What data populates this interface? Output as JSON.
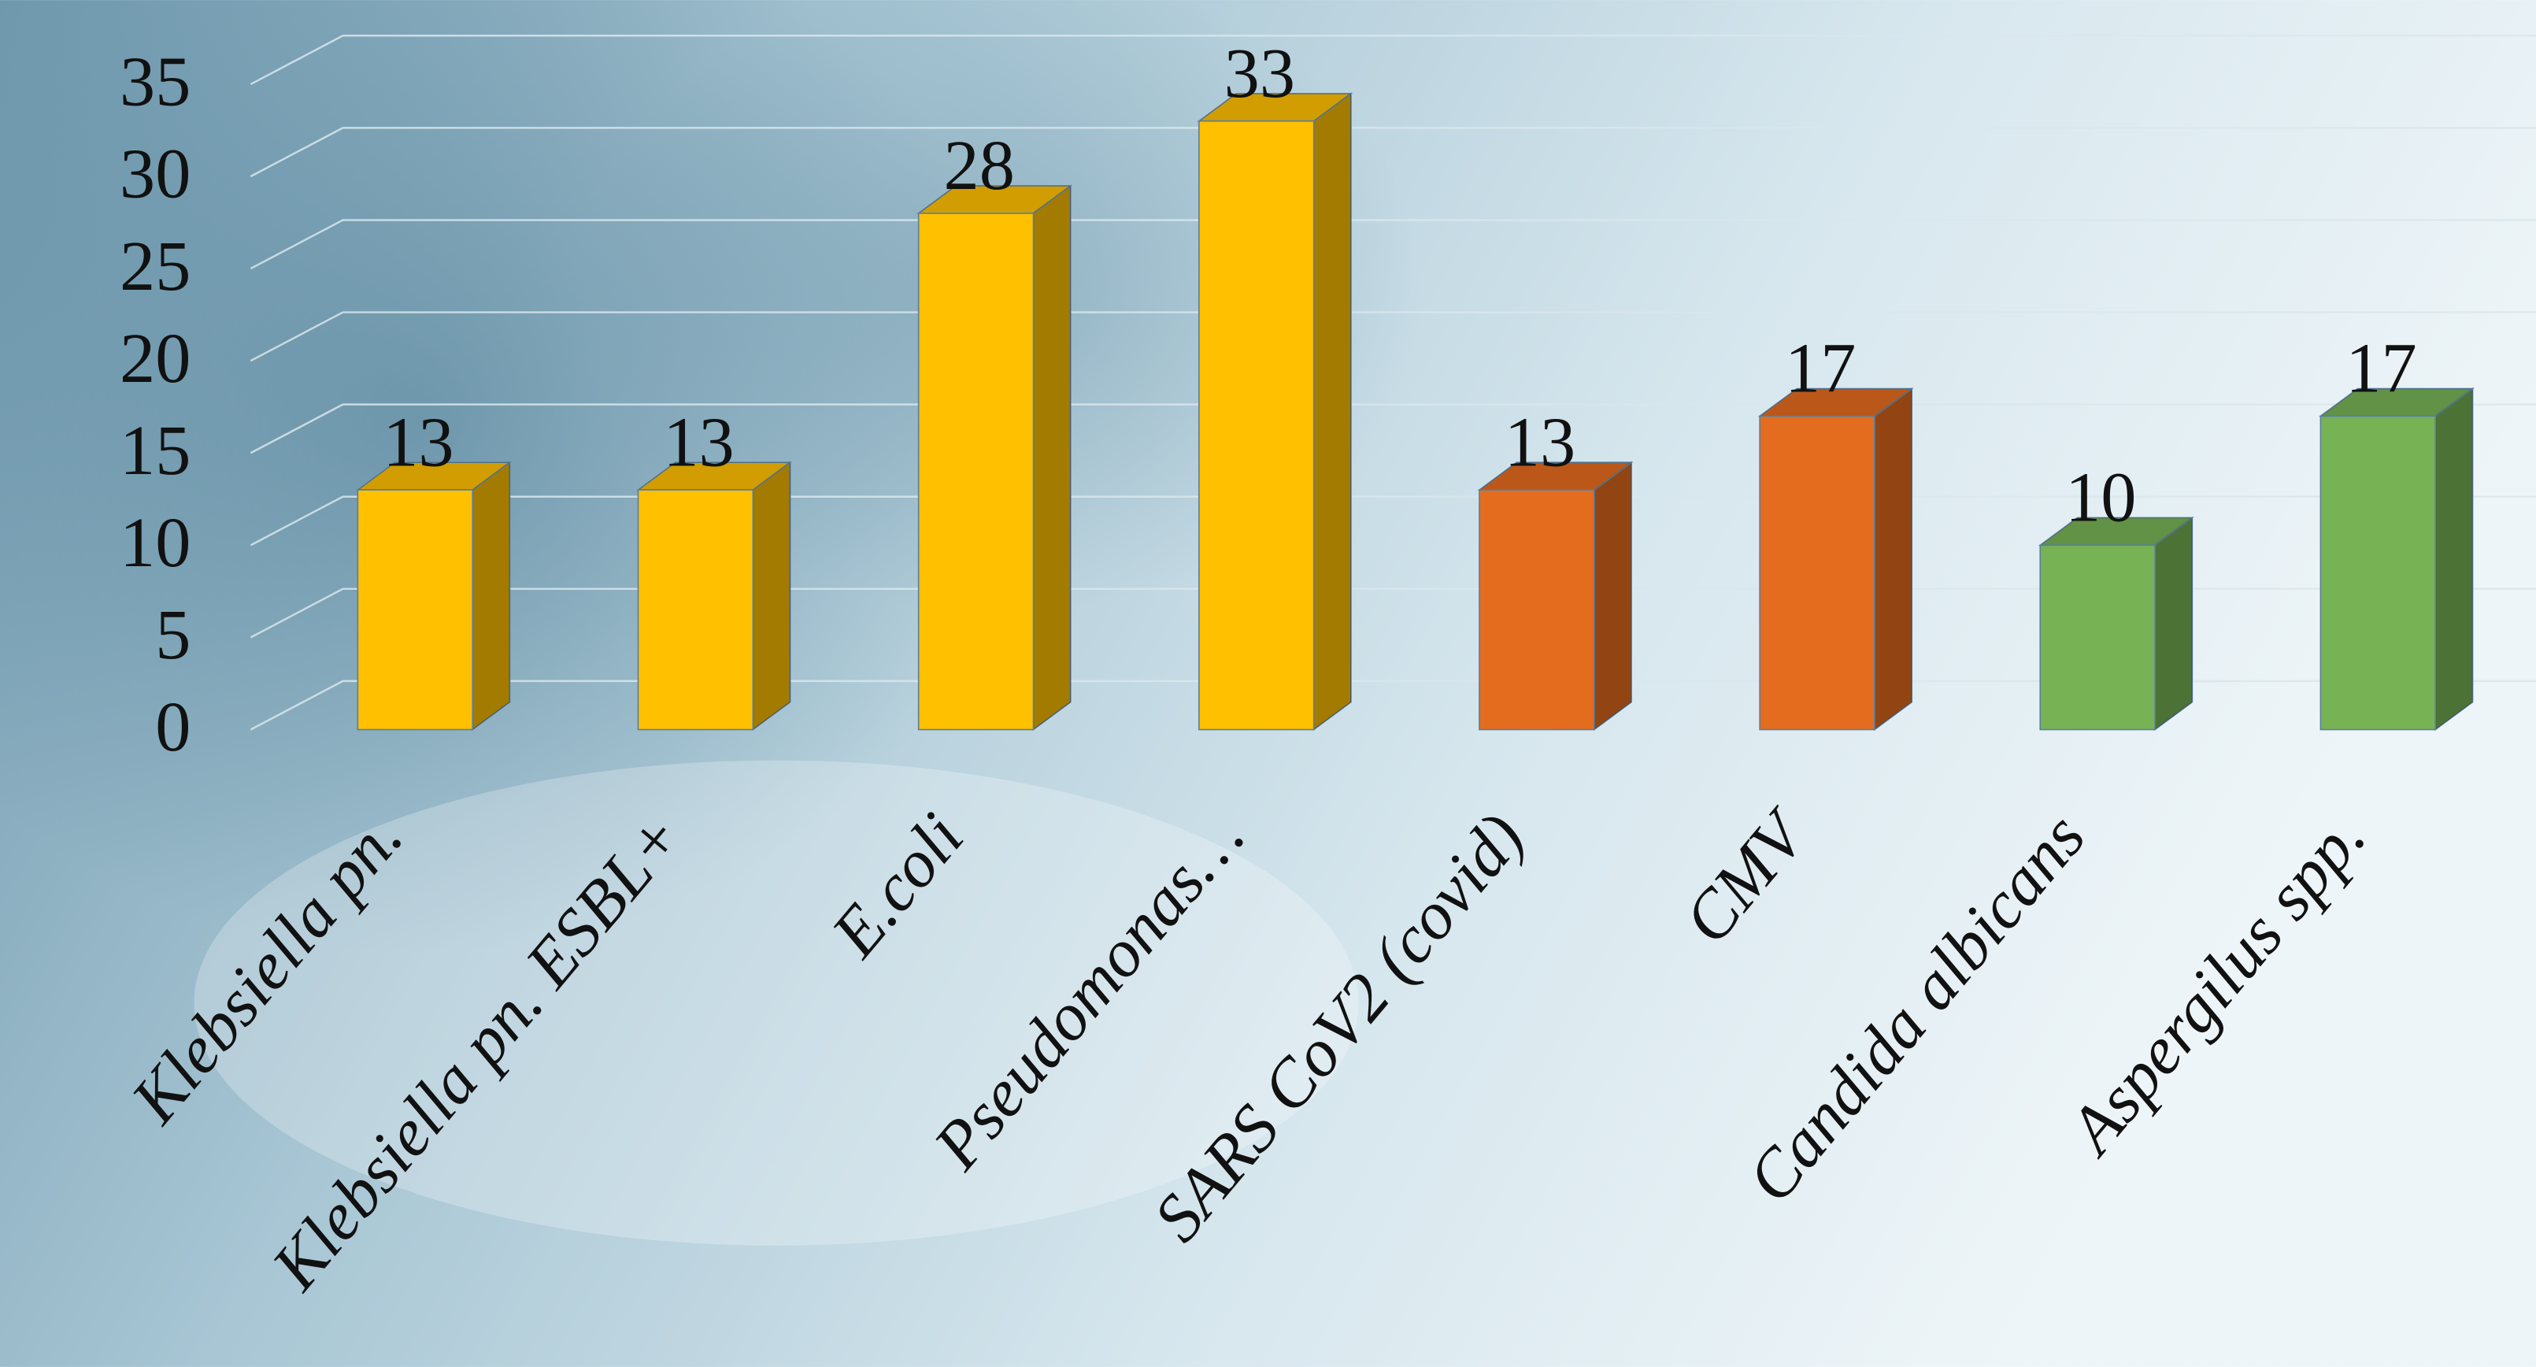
{
  "chart_data": {
    "type": "bar3d",
    "categories": [
      "Klebsiella pn.",
      "Klebsiella pn. ESBL+",
      "E.coli",
      "Pseudomonas…",
      "SARS CoV2 (covid)",
      "CMV",
      "Candida albicans",
      "Aspergilus spp."
    ],
    "values": [
      13,
      13,
      28,
      33,
      13,
      17,
      10,
      17
    ],
    "colors": [
      "#ffc000",
      "#ffc000",
      "#ffc000",
      "#ffc000",
      "#e46c1f",
      "#e46c1f",
      "#77b255",
      "#77b255"
    ],
    "ylim": [
      0,
      35
    ],
    "yticks": [
      0,
      5,
      10,
      15,
      20,
      25,
      30,
      35
    ],
    "grid": true
  }
}
